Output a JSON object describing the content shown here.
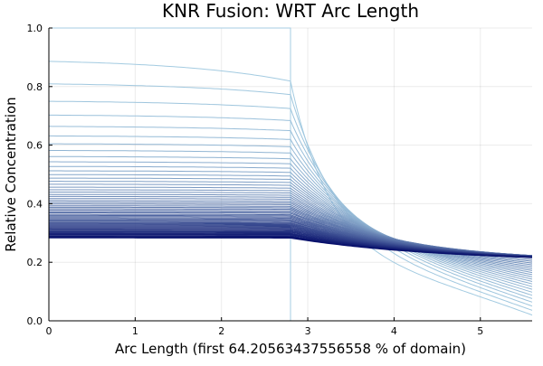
{
  "chart_data": {
    "type": "line",
    "title": "KNR Fusion: WRT Arc Length",
    "xlabel": "Arc Length (first 64.20563437556558 % of domain)",
    "ylabel": "Relative Concentration",
    "xlim": [
      0,
      5.6
    ],
    "ylim": [
      0,
      1.0
    ],
    "xticks": [
      0,
      1,
      2,
      3,
      4,
      5
    ],
    "yticks": [
      0.0,
      0.2,
      0.4,
      0.6,
      0.8,
      1.0
    ],
    "xtick_labels": [
      "0",
      "1",
      "2",
      "3",
      "4",
      "5"
    ],
    "ytick_labels": [
      "0.0",
      "0.2",
      "0.4",
      "0.6",
      "0.8",
      "1.0"
    ],
    "grid": true,
    "legend": "none",
    "colors": {
      "first_curve": "#a6cee3",
      "last_curve": "#08106b"
    },
    "boundary_x": 2.8,
    "series_count": 61,
    "series_left_plateau_y": [
      1.0,
      0.895,
      0.814,
      0.753,
      0.705,
      0.666,
      0.633,
      0.606,
      0.583,
      0.562,
      0.544,
      0.528,
      0.513,
      0.5,
      0.488,
      0.477,
      0.467,
      0.457,
      0.448,
      0.44,
      0.432,
      0.425,
      0.418,
      0.411,
      0.405,
      0.399,
      0.393,
      0.388,
      0.383,
      0.378,
      0.373,
      0.369,
      0.364,
      0.36,
      0.356,
      0.352,
      0.348,
      0.344,
      0.341,
      0.337,
      0.334,
      0.331,
      0.328,
      0.325,
      0.322,
      0.319,
      0.316,
      0.313,
      0.31,
      0.308,
      0.305,
      0.303,
      0.3,
      0.298,
      0.296,
      0.294,
      0.291,
      0.289,
      0.287,
      0.285,
      0.283
    ],
    "equilibrium_y": 0.2
  }
}
